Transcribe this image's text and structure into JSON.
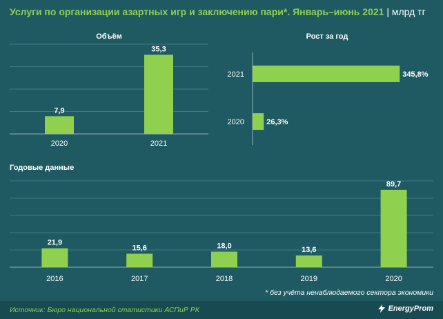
{
  "header": {
    "title": "Услуги по организации азартных игр и заключению пари*. Январь–июнь 2021",
    "separator": "|",
    "unit": "млрд тг"
  },
  "footnote": "* без учёта ненаблюдаемого сектора экономики",
  "footer": {
    "source": "Источник: Бюро национальной статистики АСПиР РК",
    "logo": "EnergyProm",
    "logo_icon": "energyprom-logo-icon"
  },
  "colors": {
    "background": "#1f5a62",
    "bar": "#8fd14f",
    "gridline": "#3f7b83",
    "footer": "#174a51"
  },
  "chart_data": [
    {
      "type": "bar",
      "title": "Объём",
      "categories": [
        "2020",
        "2021"
      ],
      "values": [
        7.9,
        35.3
      ],
      "labels": [
        "7,9",
        "35,3"
      ],
      "ylim": [
        0,
        40
      ],
      "grid": true
    },
    {
      "type": "bar",
      "orientation": "horizontal",
      "title": "Рост за год",
      "categories": [
        "2021",
        "2020"
      ],
      "values": [
        345.8,
        26.3
      ],
      "labels": [
        "345,8%",
        "26,3%"
      ],
      "xlim": [
        0,
        360
      ],
      "grid": false
    },
    {
      "type": "bar",
      "title": "Годовые данные",
      "categories": [
        "2016",
        "2017",
        "2018",
        "2019",
        "2020"
      ],
      "values": [
        21.9,
        15.6,
        18.0,
        13.6,
        89.7
      ],
      "labels": [
        "21,9",
        "15,6",
        "18,0",
        "13,6",
        "89,7"
      ],
      "ylim": [
        0,
        100
      ],
      "grid": true
    }
  ]
}
